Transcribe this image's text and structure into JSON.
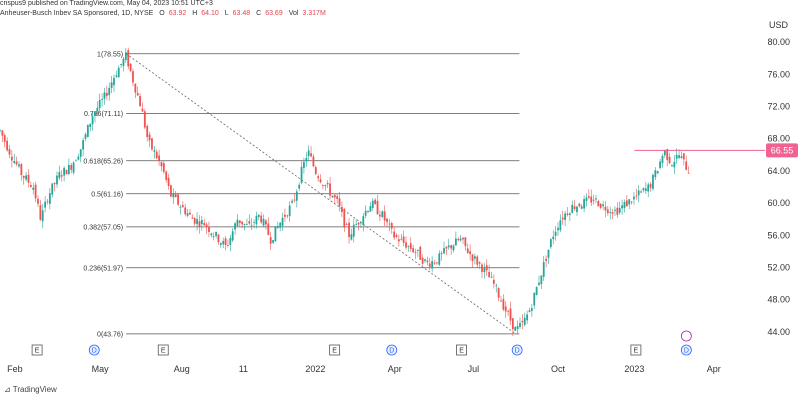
{
  "header": {
    "published": "crispus9 published on TradingView.com, May 04, 2023 10:51 UTC+3",
    "symbol": "Anheuser-Busch Inbev SA Sponsored, 1D, NYSE",
    "o_label": "O",
    "o_val": "63.92",
    "h_label": "H",
    "h_val": "64.10",
    "l_label": "L",
    "l_val": "63.48",
    "c_label": "C",
    "c_val": "63.69",
    "vol_label": "Vol",
    "vol_val": "3.317M"
  },
  "axis": {
    "currency": "USD"
  },
  "branding": {
    "name": "TradingView"
  },
  "colors": {
    "up": "#26a69a",
    "down": "#ef5350",
    "fib": "#555555",
    "price_line": "#f06292"
  },
  "chart_data": {
    "type": "candlestick",
    "ylim": [
      43.0,
      81.5
    ],
    "y_ticks": [
      "80.00",
      "76.00",
      "72.00",
      "68.00",
      "64.00",
      "60.00",
      "56.00",
      "52.00",
      "48.00",
      "44.00"
    ],
    "x_ticks": [
      "Feb",
      "May",
      "Aug",
      "11",
      "2022",
      "Apr",
      "Jul",
      "Oct",
      "2023",
      "Apr"
    ],
    "current_price": "66.55",
    "fib_levels": [
      {
        "label": "1(78.55)",
        "value": 78.55
      },
      {
        "label": "0.786(71.11)",
        "value": 71.11
      },
      {
        "label": "0.618(65.26)",
        "value": 65.26
      },
      {
        "label": "0.5(61.16)",
        "value": 61.16
      },
      {
        "label": "0.382(57.05)",
        "value": 57.05
      },
      {
        "label": "0.236(51.97)",
        "value": 51.97
      },
      {
        "label": "0(43.76)",
        "value": 43.76
      }
    ],
    "trend_line": {
      "from": {
        "x": 0.17,
        "y": 78.55
      },
      "to": {
        "x": 0.695,
        "y": 43.76
      }
    },
    "markers": [
      {
        "x": 0.05,
        "type": "E"
      },
      {
        "x": 0.127,
        "type": "D"
      },
      {
        "x": 0.22,
        "type": "E"
      },
      {
        "x": 0.451,
        "type": "E"
      },
      {
        "x": 0.528,
        "type": "D"
      },
      {
        "x": 0.622,
        "type": "E"
      },
      {
        "x": 0.697,
        "type": "D"
      },
      {
        "x": 0.857,
        "type": "E"
      },
      {
        "x": 0.925,
        "type": "D"
      }
    ],
    "price_path": [
      [
        0.0,
        69.0
      ],
      [
        0.015,
        66.0
      ],
      [
        0.03,
        63.5
      ],
      [
        0.045,
        62.0
      ],
      [
        0.055,
        58.0
      ],
      [
        0.065,
        61.0
      ],
      [
        0.08,
        63.5
      ],
      [
        0.095,
        64.5
      ],
      [
        0.11,
        67.0
      ],
      [
        0.125,
        71.0
      ],
      [
        0.14,
        73.0
      ],
      [
        0.155,
        76.0
      ],
      [
        0.17,
        78.3
      ],
      [
        0.18,
        75.0
      ],
      [
        0.19,
        72.0
      ],
      [
        0.2,
        67.5
      ],
      [
        0.21,
        66.0
      ],
      [
        0.22,
        64.0
      ],
      [
        0.23,
        61.0
      ],
      [
        0.245,
        59.5
      ],
      [
        0.26,
        58.0
      ],
      [
        0.275,
        57.5
      ],
      [
        0.29,
        56.0
      ],
      [
        0.305,
        54.5
      ],
      [
        0.32,
        58.0
      ],
      [
        0.335,
        57.0
      ],
      [
        0.35,
        58.5
      ],
      [
        0.365,
        55.5
      ],
      [
        0.38,
        58.0
      ],
      [
        0.395,
        60.0
      ],
      [
        0.405,
        63.5
      ],
      [
        0.415,
        66.5
      ],
      [
        0.425,
        64.0
      ],
      [
        0.44,
        62.0
      ],
      [
        0.455,
        60.0
      ],
      [
        0.47,
        56.0
      ],
      [
        0.485,
        58.0
      ],
      [
        0.5,
        60.0
      ],
      [
        0.515,
        58.5
      ],
      [
        0.53,
        56.0
      ],
      [
        0.545,
        55.0
      ],
      [
        0.56,
        54.0
      ],
      [
        0.575,
        52.5
      ],
      [
        0.59,
        53.0
      ],
      [
        0.605,
        54.5
      ],
      [
        0.62,
        55.5
      ],
      [
        0.635,
        53.5
      ],
      [
        0.65,
        52.0
      ],
      [
        0.665,
        50.0
      ],
      [
        0.68,
        47.0
      ],
      [
        0.695,
        44.2
      ],
      [
        0.705,
        45.0
      ],
      [
        0.715,
        47.0
      ],
      [
        0.725,
        50.0
      ],
      [
        0.735,
        53.0
      ],
      [
        0.745,
        56.0
      ],
      [
        0.755,
        58.0
      ],
      [
        0.77,
        59.5
      ],
      [
        0.785,
        60.0
      ],
      [
        0.8,
        60.5
      ],
      [
        0.815,
        59.5
      ],
      [
        0.83,
        59.0
      ],
      [
        0.845,
        60.0
      ],
      [
        0.86,
        61.0
      ],
      [
        0.875,
        62.0
      ],
      [
        0.885,
        64.0
      ],
      [
        0.895,
        66.5
      ],
      [
        0.905,
        65.0
      ],
      [
        0.915,
        66.0
      ],
      [
        0.925,
        64.5
      ],
      [
        0.93,
        63.7
      ]
    ]
  }
}
